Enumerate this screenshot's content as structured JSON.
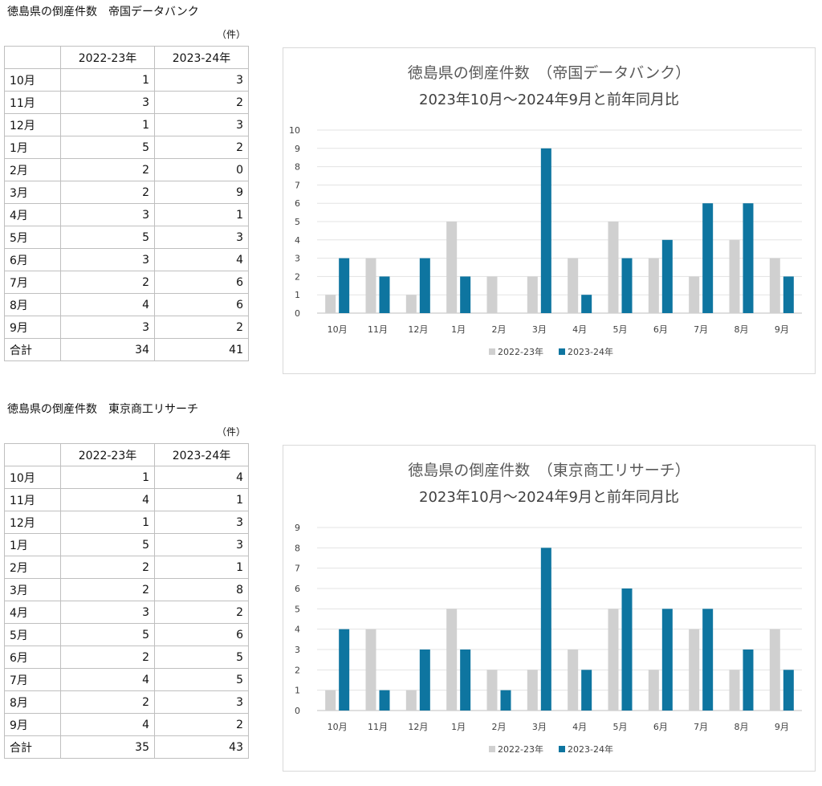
{
  "sections": [
    {
      "heading": "徳島県の倒産件数　帝国データバンク",
      "unit": "（件）",
      "table": {
        "header": [
          "",
          "2022-23年",
          "2023-24年"
        ],
        "rows": [
          [
            "10月",
            "1",
            "3"
          ],
          [
            "11月",
            "3",
            "2"
          ],
          [
            "12月",
            "1",
            "3"
          ],
          [
            "1月",
            "5",
            "2"
          ],
          [
            "2月",
            "2",
            "0"
          ],
          [
            "3月",
            "2",
            "9"
          ],
          [
            "4月",
            "3",
            "1"
          ],
          [
            "5月",
            "5",
            "3"
          ],
          [
            "6月",
            "3",
            "4"
          ],
          [
            "7月",
            "2",
            "6"
          ],
          [
            "8月",
            "4",
            "6"
          ],
          [
            "9月",
            "3",
            "2"
          ],
          [
            "合計",
            "34",
            "41"
          ]
        ]
      },
      "chart_data": {
        "type": "bar",
        "title": "徳島県の倒産件数　（帝国データバンク）",
        "subtitle": "2023年10月～2024年9月と前年同月比",
        "categories": [
          "10月",
          "11月",
          "12月",
          "1月",
          "2月",
          "3月",
          "4月",
          "5月",
          "6月",
          "7月",
          "8月",
          "9月"
        ],
        "series": [
          {
            "name": "2022-23年",
            "color": "#d0d0d0",
            "values": [
              1,
              3,
              1,
              5,
              2,
              2,
              3,
              5,
              3,
              2,
              4,
              3
            ]
          },
          {
            "name": "2023-24年",
            "color": "#0e75a0",
            "values": [
              3,
              2,
              3,
              2,
              0,
              9,
              1,
              3,
              4,
              6,
              6,
              2
            ]
          }
        ],
        "ylim": [
          0,
          10
        ],
        "yticks": [
          0,
          1,
          2,
          3,
          4,
          5,
          6,
          7,
          8,
          9,
          10
        ],
        "grid": true,
        "legend": "bottom"
      }
    },
    {
      "heading": "徳島県の倒産件数　東京商工リサーチ",
      "unit": "（件）",
      "table": {
        "header": [
          "",
          "2022-23年",
          "2023-24年"
        ],
        "rows": [
          [
            "10月",
            "1",
            "4"
          ],
          [
            "11月",
            "4",
            "1"
          ],
          [
            "12月",
            "1",
            "3"
          ],
          [
            "1月",
            "5",
            "3"
          ],
          [
            "2月",
            "2",
            "1"
          ],
          [
            "3月",
            "2",
            "8"
          ],
          [
            "4月",
            "3",
            "2"
          ],
          [
            "5月",
            "5",
            "6"
          ],
          [
            "6月",
            "2",
            "5"
          ],
          [
            "7月",
            "4",
            "5"
          ],
          [
            "8月",
            "2",
            "3"
          ],
          [
            "9月",
            "4",
            "2"
          ],
          [
            "合計",
            "35",
            "43"
          ]
        ]
      },
      "chart_data": {
        "type": "bar",
        "title": "徳島県の倒産件数　（東京商工リサーチ）",
        "subtitle": "2023年10月～2024年9月と前年同月比",
        "categories": [
          "10月",
          "11月",
          "12月",
          "1月",
          "2月",
          "3月",
          "4月",
          "5月",
          "6月",
          "7月",
          "8月",
          "9月"
        ],
        "series": [
          {
            "name": "2022-23年",
            "color": "#d0d0d0",
            "values": [
              1,
              4,
              1,
              5,
              2,
              2,
              3,
              5,
              2,
              4,
              2,
              4
            ]
          },
          {
            "name": "2023-24年",
            "color": "#0e75a0",
            "values": [
              4,
              1,
              3,
              3,
              1,
              8,
              2,
              6,
              5,
              5,
              3,
              2
            ]
          }
        ],
        "ylim": [
          0,
          9
        ],
        "yticks": [
          0,
          1,
          2,
          3,
          4,
          5,
          6,
          7,
          8,
          9
        ],
        "grid": true,
        "legend": "bottom"
      }
    }
  ]
}
